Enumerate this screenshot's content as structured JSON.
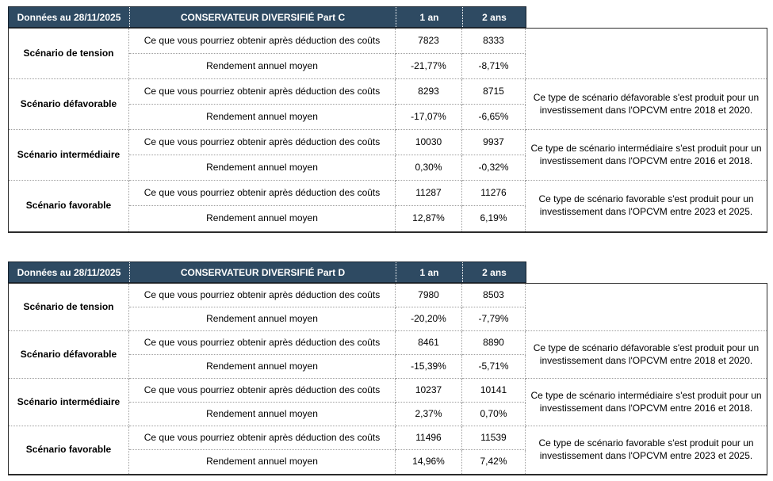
{
  "colors": {
    "header_bg": "#2E4A62",
    "header_text": "#FFFFFF",
    "outer_border": "#2B2B2B",
    "dotted_border": "#9E9E9E"
  },
  "tables": [
    {
      "date_label": "Données au 28/11/2025",
      "title": "CONSERVATEUR DIVERSIFIÉ Part C",
      "col_1an": "1 an",
      "col_2ans": "2 ans",
      "label_obtain": "Ce que vous pourriez obtenir après déduction des coûts",
      "label_yield": "Rendement annuel moyen",
      "scenarios": [
        {
          "name": "Scénario de tension",
          "obtain_1an": "7823",
          "obtain_2ans": "8333",
          "yield_1an": "-21,77%",
          "yield_2ans": "-8,71%",
          "note": ""
        },
        {
          "name": "Scénario défavorable",
          "obtain_1an": "8293",
          "obtain_2ans": "8715",
          "yield_1an": "-17,07%",
          "yield_2ans": "-6,65%",
          "note": "Ce type de scénario défavorable s'est produit pour un investissement dans l'OPCVM entre 2018 et 2020."
        },
        {
          "name": "Scénario intermédiaire",
          "obtain_1an": "10030",
          "obtain_2ans": "9937",
          "yield_1an": "0,30%",
          "yield_2ans": "-0,32%",
          "note": "Ce type de scénario intermédiaire s'est produit pour un investissement dans l'OPCVM entre 2016 et 2018."
        },
        {
          "name": "Scénario favorable",
          "obtain_1an": "11287",
          "obtain_2ans": "11276",
          "yield_1an": "12,87%",
          "yield_2ans": "6,19%",
          "note": "Ce type de scénario favorable s'est produit pour un investissement dans l'OPCVM entre 2023 et 2025."
        }
      ]
    },
    {
      "date_label": "Données au 28/11/2025",
      "title": "CONSERVATEUR DIVERSIFIÉ Part D",
      "col_1an": "1 an",
      "col_2ans": "2 ans",
      "label_obtain": "Ce que vous pourriez obtenir après déduction des coûts",
      "label_yield": "Rendement annuel moyen",
      "scenarios": [
        {
          "name": "Scénario de tension",
          "obtain_1an": "7980",
          "obtain_2ans": "8503",
          "yield_1an": "-20,20%",
          "yield_2ans": "-7,79%",
          "note": ""
        },
        {
          "name": "Scénario défavorable",
          "obtain_1an": "8461",
          "obtain_2ans": "8890",
          "yield_1an": "-15,39%",
          "yield_2ans": "-5,71%",
          "note": "Ce type de scénario défavorable s'est produit pour un investissement dans l'OPCVM entre 2018 et 2020."
        },
        {
          "name": "Scénario intermédiaire",
          "obtain_1an": "10237",
          "obtain_2ans": "10141",
          "yield_1an": "2,37%",
          "yield_2ans": "0,70%",
          "note": "Ce type de scénario intermédiaire s'est produit pour un investissement dans l'OPCVM entre 2016 et 2018."
        },
        {
          "name": "Scénario favorable",
          "obtain_1an": "11496",
          "obtain_2ans": "11539",
          "yield_1an": "14,96%",
          "yield_2ans": "7,42%",
          "note": "Ce type de scénario favorable s'est produit pour un investissement dans l'OPCVM entre 2023 et 2025."
        }
      ]
    }
  ]
}
